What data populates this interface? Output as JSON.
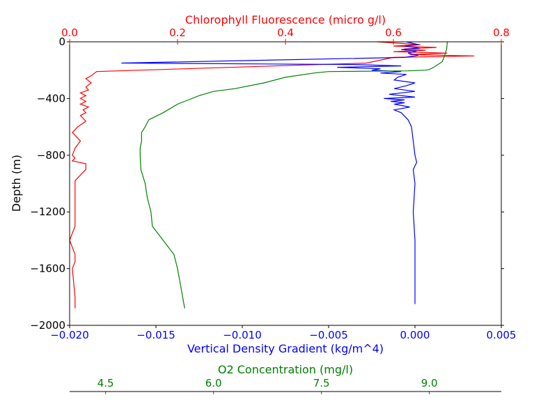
{
  "chart_data": {
    "type": "line",
    "title": "",
    "ylabel": "Depth (m)",
    "ylim": [
      -2000,
      0
    ],
    "y_ticks": [
      {
        "value": 0,
        "label": "0"
      },
      {
        "value": -400,
        "label": "−400"
      },
      {
        "value": -800,
        "label": "−800"
      },
      {
        "value": -1200,
        "label": "−1200"
      },
      {
        "value": -1600,
        "label": "−1600"
      },
      {
        "value": -2000,
        "label": "−2000"
      }
    ],
    "grid": false,
    "legend": "none",
    "x_axes": [
      {
        "id": "density",
        "position": "bottom",
        "label": "Vertical Density Gradient (kg/m^4)",
        "color": "#0000ff",
        "range": [
          -0.02,
          0.005
        ],
        "ticks": [
          {
            "value": -0.02,
            "label": "−0.020"
          },
          {
            "value": -0.015,
            "label": "−0.015"
          },
          {
            "value": -0.01,
            "label": "−0.010"
          },
          {
            "value": -0.005,
            "label": "−0.005"
          },
          {
            "value": 0,
            "label": "0.000"
          },
          {
            "value": 0.005,
            "label": "0.005"
          }
        ]
      },
      {
        "id": "chlorophyll",
        "position": "top",
        "label": "Chlorophyll Fluorescence (micro g/l)",
        "color": "#ff0000",
        "range": [
          0,
          0.8
        ],
        "ticks": [
          {
            "value": 0,
            "label": "0.0"
          },
          {
            "value": 0.2,
            "label": "0.2"
          },
          {
            "value": 0.4,
            "label": "0.4"
          },
          {
            "value": 0.6,
            "label": "0.6"
          },
          {
            "value": 0.8,
            "label": "0.8"
          }
        ]
      },
      {
        "id": "o2",
        "position": "offset-bottom",
        "label": "O2 Concentration (mg/l)",
        "color": "#008000",
        "range": [
          4.0,
          10.0
        ],
        "ticks": [
          {
            "value": 4.5,
            "label": "4.5"
          },
          {
            "value": 6.0,
            "label": "6.0"
          },
          {
            "value": 7.5,
            "label": "7.5"
          },
          {
            "value": 9.0,
            "label": "9.0"
          }
        ]
      }
    ],
    "series": [
      {
        "axis": "chlorophyll",
        "color": "#ff0000",
        "x": [
          0.57,
          0.65,
          0.6,
          0.68,
          0.62,
          0.66,
          0.6,
          0.7,
          0.63,
          0.75,
          0.6,
          0.55,
          0.05,
          0.04,
          0.03,
          0.04,
          0.03,
          0.035,
          0.02,
          0.03,
          0.02,
          0.03,
          0.02,
          0.035,
          0.025,
          0.03,
          0.02,
          0.03,
          0.015,
          0.01,
          0.005,
          0.02,
          0.01,
          0.005,
          0.01,
          0.005,
          0.03,
          0.03,
          0.01,
          0.01,
          0.01,
          0.0,
          0.01,
          0.01,
          0.005,
          0.01,
          0.01
        ],
        "y": [
          0,
          -20,
          -30,
          -40,
          -50,
          -60,
          -70,
          -80,
          -90,
          -100,
          -110,
          -150,
          -210,
          -240,
          -260,
          -290,
          -320,
          -340,
          -360,
          -380,
          -400,
          -420,
          -440,
          -460,
          -480,
          -500,
          -520,
          -560,
          -600,
          -620,
          -640,
          -700,
          -750,
          -800,
          -820,
          -840,
          -860,
          -900,
          -980,
          -1100,
          -1300,
          -1400,
          -1500,
          -1550,
          -1600,
          -1800,
          -1880
        ]
      },
      {
        "axis": "density",
        "color": "#0000ff",
        "x": [
          -0.0005,
          0.0002,
          -0.0006,
          0.0003,
          -0.0008,
          0.0001,
          -0.0004,
          0.0002,
          -0.0006,
          -0.017,
          -0.0035,
          -0.0008,
          -0.0045,
          -0.002,
          -0.0025,
          -0.0008,
          -0.002,
          -0.0005,
          -0.001,
          -0.0012,
          0.0,
          -0.0005,
          -0.0012,
          0.0,
          -0.0015,
          0.0,
          -0.0018,
          -0.0006,
          -0.0014,
          -0.0006,
          -0.0012,
          -0.0003,
          -0.0012,
          -0.0008,
          -0.0004,
          -0.0002,
          -0.0001,
          0.0,
          0.0001,
          -0.0001,
          0.0,
          -0.0001,
          0.0,
          0.0,
          0.0
        ],
        "y": [
          0,
          -20,
          -30,
          -45,
          -55,
          -65,
          -80,
          -95,
          -110,
          -150,
          -160,
          -170,
          -180,
          -190,
          -200,
          -210,
          -220,
          -230,
          -250,
          -270,
          -290,
          -310,
          -330,
          -350,
          -370,
          -390,
          -400,
          -410,
          -420,
          -430,
          -440,
          -460,
          -480,
          -500,
          -550,
          -600,
          -700,
          -800,
          -850,
          -900,
          -1000,
          -1200,
          -1400,
          -1600,
          -1850
        ]
      },
      {
        "axis": "o2",
        "color": "#008000",
        "x": [
          9.25,
          9.24,
          9.21,
          9.18,
          9.06,
          9.0,
          8.95,
          8.7,
          7.6,
          7.4,
          7.0,
          6.7,
          6.3,
          6.0,
          5.8,
          5.6,
          5.5,
          5.3,
          5.1,
          5.05,
          5.0,
          5.0,
          4.98,
          4.98,
          4.99,
          5.05,
          5.08,
          5.13,
          5.15,
          5.3,
          5.45,
          5.5,
          5.6
        ],
        "y": [
          0,
          -50,
          -100,
          -140,
          -180,
          -195,
          -200,
          -205,
          -210,
          -220,
          -250,
          -290,
          -330,
          -350,
          -380,
          -420,
          -440,
          -500,
          -550,
          -600,
          -640,
          -700,
          -750,
          -800,
          -900,
          -1000,
          -1100,
          -1200,
          -1300,
          -1400,
          -1500,
          -1600,
          -1880
        ]
      }
    ]
  }
}
